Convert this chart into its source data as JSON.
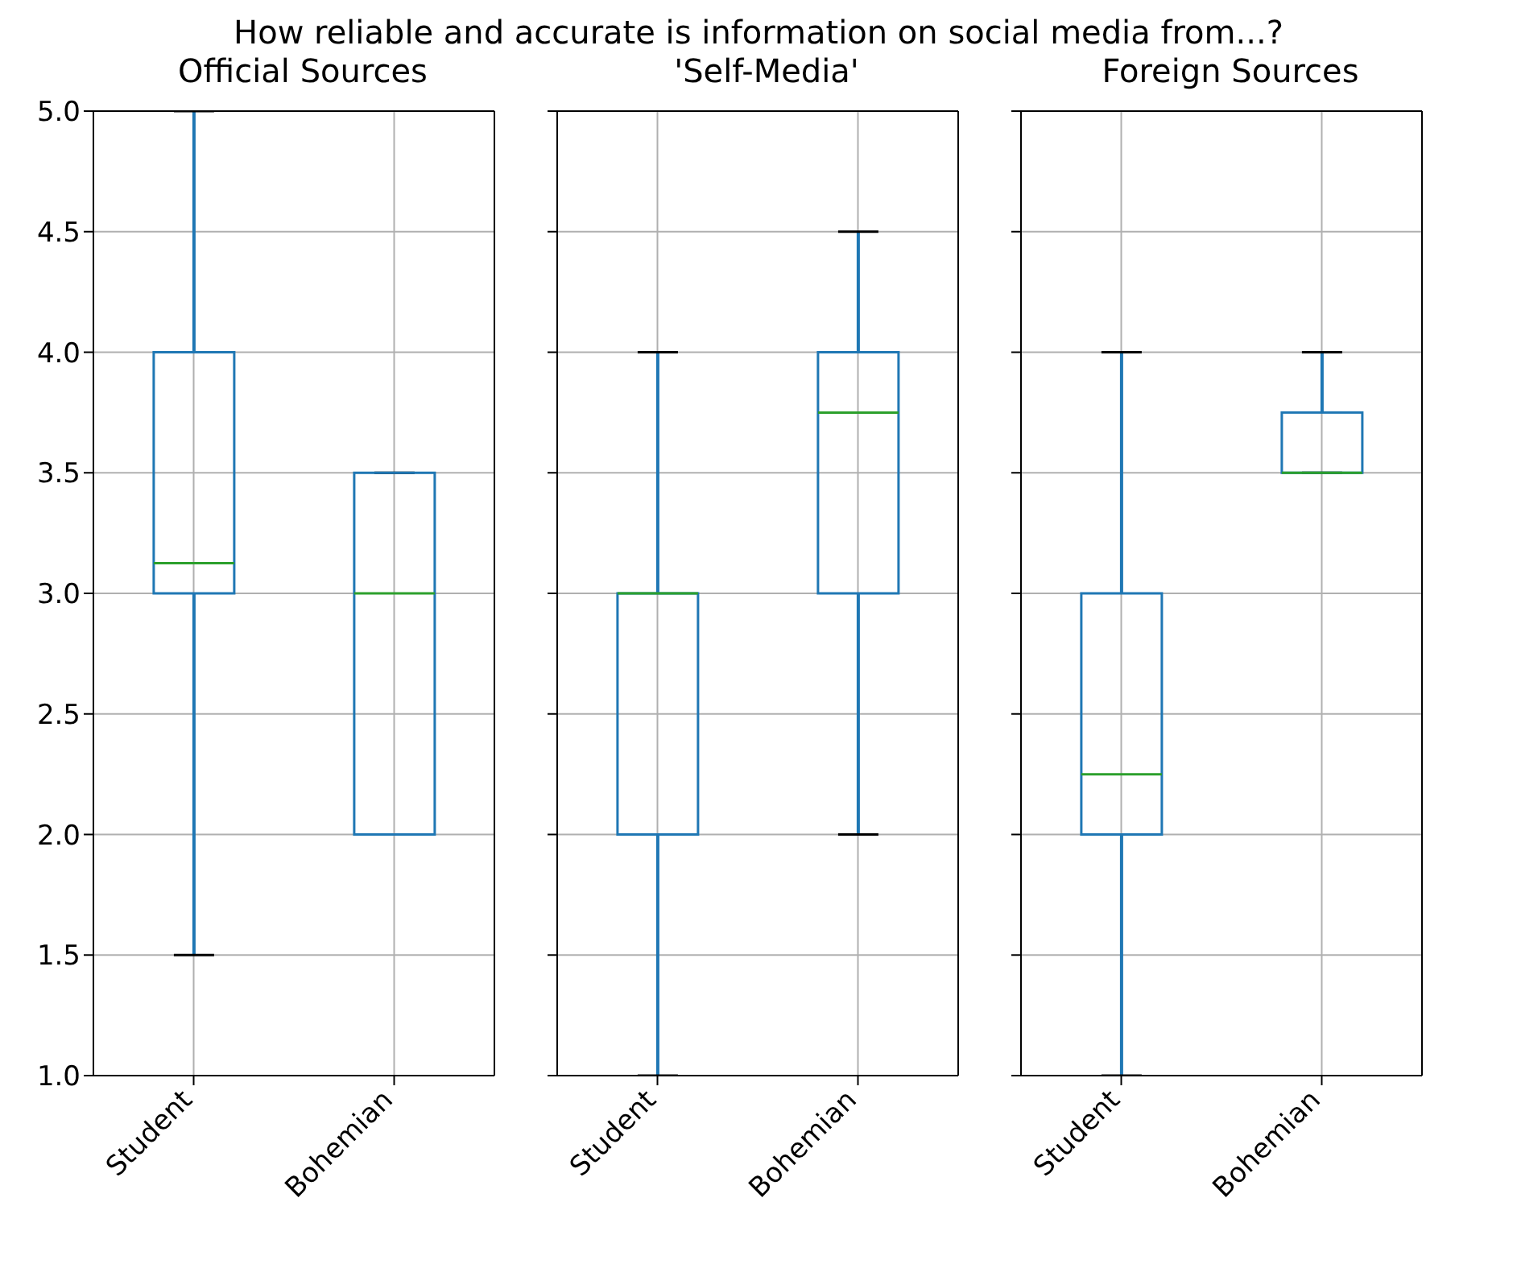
{
  "chart_data": [
    {
      "type": "box",
      "title": "Official Sources",
      "annotations": [
        "How reliable and accurate is information on social media from...?"
      ],
      "categories": [
        "Student",
        "Bohemian"
      ],
      "color": "#1f77b4",
      "ylim": [
        1.0,
        5.0
      ],
      "yticks": [
        {
          "value": 1,
          "label": "1.0"
        },
        1.5,
        {
          "value": 2,
          "label": "2.0"
        },
        2.5,
        {
          "value": 3,
          "label": "3.0"
        },
        3.5,
        {
          "value": 4,
          "label": "4.0"
        },
        4.5,
        {
          "value": 5,
          "label": "5.0"
        }
      ],
      "grid": true,
      "boxes": [
        {
          "low": 1.5,
          "q1": 3.0,
          "median": 3.125,
          "q3": 4.0,
          "high": 5.0
        },
        {
          "low": 2.0,
          "q1": 2.0,
          "median": 3.0,
          "q3": 3.5,
          "high": 3.5
        }
      ]
    },
    {
      "type": "box",
      "title": "'Self-Media'",
      "categories": [
        "Student",
        "Bohemian"
      ],
      "color": "#1f77b4",
      "ylim": [
        1.0,
        5.0
      ],
      "yticks": [
        1,
        1.5,
        2,
        2.5,
        3,
        3.5,
        4,
        4.5,
        5
      ],
      "grid": true,
      "tick_labels": "x",
      "boxes": [
        {
          "low": 1.0,
          "q1": 2.0,
          "median": 3.0,
          "q3": 3.0,
          "high": 4.0
        },
        {
          "low": 2.0,
          "q1": 3.0,
          "median": 3.75,
          "q3": 4.0,
          "high": 4.5
        }
      ]
    },
    {
      "type": "box",
      "title": "Foreign Sources",
      "categories": [
        "Student",
        "Bohemian"
      ],
      "color": "#1f77b4",
      "ylim": [
        1.0,
        5.0
      ],
      "yticks": [
        1,
        1.5,
        2,
        2.5,
        3,
        3.5,
        4,
        4.5,
        5
      ],
      "grid": true,
      "tick_labels": "x",
      "boxes": [
        {
          "low": 1.0,
          "q1": 2.0,
          "median": 2.25,
          "q3": 3.0,
          "high": 4.0
        },
        {
          "low": 3.5,
          "q1": 3.5,
          "median": 3.5,
          "q3": 3.75,
          "high": 4.0
        }
      ]
    }
  ]
}
